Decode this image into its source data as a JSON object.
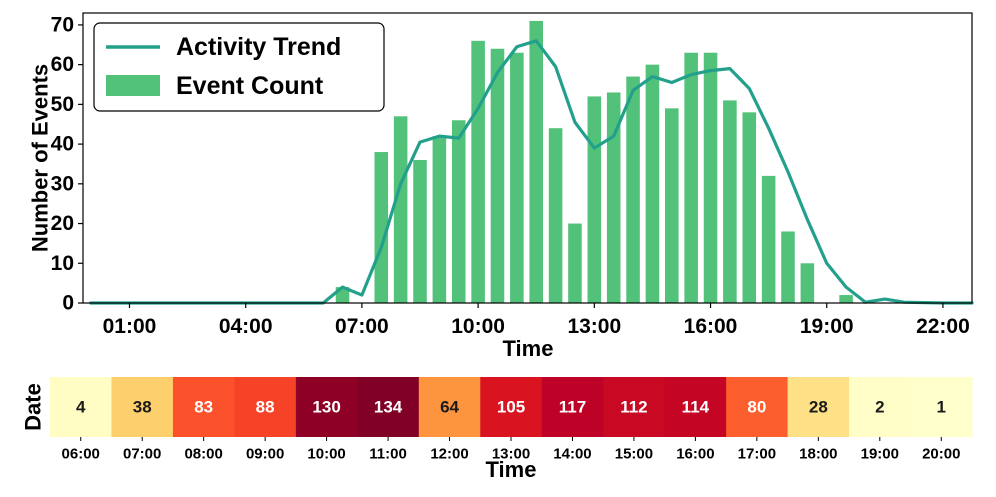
{
  "chart_data": [
    {
      "type": "bar",
      "title": "",
      "xlabel": "Time",
      "ylabel": "Number of Events",
      "ylim": [
        0,
        73
      ],
      "xlim_hours": [
        -0.2,
        22.75
      ],
      "x_ticks": [
        "01:00",
        "04:00",
        "07:00",
        "10:00",
        "13:00",
        "16:00",
        "19:00",
        "22:00"
      ],
      "y_ticks": [
        0,
        10,
        20,
        30,
        40,
        50,
        60,
        70
      ],
      "legend_position": "top-left",
      "grid": false,
      "series": [
        {
          "name": "Event Count",
          "kind": "bar",
          "color": "#52C27A",
          "x": [
            "06:30",
            "07:00",
            "07:30",
            "08:00",
            "08:30",
            "09:00",
            "09:30",
            "10:00",
            "10:30",
            "11:00",
            "11:30",
            "12:00",
            "12:30",
            "13:00",
            "13:30",
            "14:00",
            "14:30",
            "15:00",
            "15:30",
            "16:00",
            "16:30",
            "17:00",
            "17:30",
            "18:00",
            "18:30",
            "19:00",
            "19:30",
            "20:00",
            "20:30",
            "21:00",
            "21:30",
            "22:00",
            "22:30"
          ],
          "values": [
            4,
            0,
            38,
            47,
            36,
            42,
            46,
            66,
            64,
            63,
            71,
            44,
            20,
            52,
            53,
            57,
            60,
            49,
            63,
            63,
            51,
            48,
            32,
            18,
            10,
            0,
            2,
            0,
            0,
            0,
            0,
            0,
            0
          ]
        },
        {
          "name": "Activity Trend",
          "kind": "line",
          "color": "#23A08C",
          "x": [
            "00:00",
            "01:00",
            "02:00",
            "03:00",
            "04:00",
            "05:00",
            "06:00",
            "06:30",
            "07:00",
            "07:30",
            "08:00",
            "08:30",
            "09:00",
            "09:30",
            "10:00",
            "10:30",
            "11:00",
            "11:30",
            "12:00",
            "12:30",
            "13:00",
            "13:30",
            "14:00",
            "14:30",
            "15:00",
            "15:30",
            "16:00",
            "16:30",
            "17:00",
            "17:30",
            "18:00",
            "18:30",
            "19:00",
            "19:30",
            "20:00",
            "20:30",
            "21:00",
            "22:00",
            "23:00"
          ],
          "values": [
            0,
            0,
            0,
            0,
            0,
            0,
            0,
            4,
            2,
            14,
            30,
            40.5,
            42,
            41.5,
            49,
            58,
            64.5,
            66,
            59.5,
            45.5,
            39,
            42,
            53.5,
            57,
            55.5,
            57.5,
            58.5,
            59,
            54,
            44,
            33,
            21,
            10,
            4,
            0.2,
            1,
            0.2,
            0,
            0
          ]
        }
      ]
    },
    {
      "type": "heatmap",
      "xlabel": "Time",
      "ylabel": "Date",
      "x_ticks": [
        "06:00",
        "07:00",
        "08:00",
        "09:00",
        "10:00",
        "11:00",
        "12:00",
        "13:00",
        "14:00",
        "15:00",
        "16:00",
        "17:00",
        "18:00",
        "19:00",
        "20:00"
      ],
      "values": [
        4,
        38,
        83,
        88,
        130,
        134,
        64,
        105,
        117,
        112,
        114,
        80,
        28,
        2,
        1
      ],
      "colormap": "YlOrRd",
      "vmin": 1,
      "vmax": 134
    }
  ]
}
